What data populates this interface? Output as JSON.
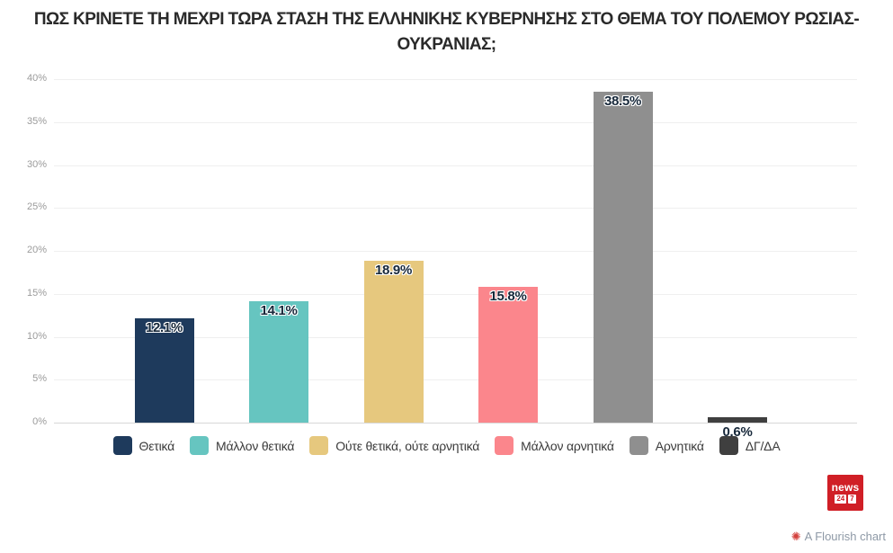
{
  "title": "ΠΩΣ ΚΡΙΝΕΤΕ ΤΗ ΜΕΧΡΙ ΤΩΡΑ ΣΤΑΣΗ ΤΗΣ ΕΛΛΗΝΙΚΗΣ ΚΥΒΕΡΝΗΣΗΣ ΣΤΟ ΘΕΜΑ ΤΟΥ ΠΟΛΕΜΟΥ ΡΩΣΙΑΣ-ΟΥΚΡΑΝΙΑΣ;",
  "chart_data": {
    "type": "bar",
    "categories": [
      "Θετικά",
      "Μάλλον θετικά",
      "Ούτε θετικά, ούτε αρνητικά",
      "Μάλλον αρνητικά",
      "Αρνητικά",
      "ΔΓ/ΔΑ"
    ],
    "values": [
      12.1,
      14.1,
      18.9,
      15.8,
      38.5,
      0.6
    ],
    "value_labels": [
      "12.1%",
      "14.1%",
      "18.9%",
      "15.8%",
      "38.5%",
      "0.6%"
    ],
    "colors": [
      "#1e3a5c",
      "#66c5c0",
      "#e6c87e",
      "#fb868c",
      "#8f8f8f",
      "#3f3f3f"
    ],
    "title": "ΠΩΣ ΚΡΙΝΕΤΕ ΤΗ ΜΕΧΡΙ ΤΩΡΑ ΣΤΑΣΗ ΤΗΣ ΕΛΛΗΝΙΚΗΣ ΚΥΒΕΡΝΗΣΗΣ ΣΤΟ ΘΕΜΑ ΤΟΥ ΠΟΛΕΜΟΥ ΡΩΣΙΑΣ-ΟΥΚΡΑΝΙΑΣ;",
    "xlabel": "",
    "ylabel": "",
    "ylim": [
      0,
      40
    ],
    "ytick_step": 5,
    "yticks": [
      "0%",
      "5%",
      "10%",
      "15%",
      "20%",
      "25%",
      "30%",
      "35%",
      "40%"
    ],
    "grid": true,
    "legend_position": "bottom"
  },
  "footer": {
    "logo": {
      "word": "news",
      "box1": "24",
      "box2": "7",
      "background": "#d01f26"
    },
    "attribution": "A Flourish chart"
  }
}
